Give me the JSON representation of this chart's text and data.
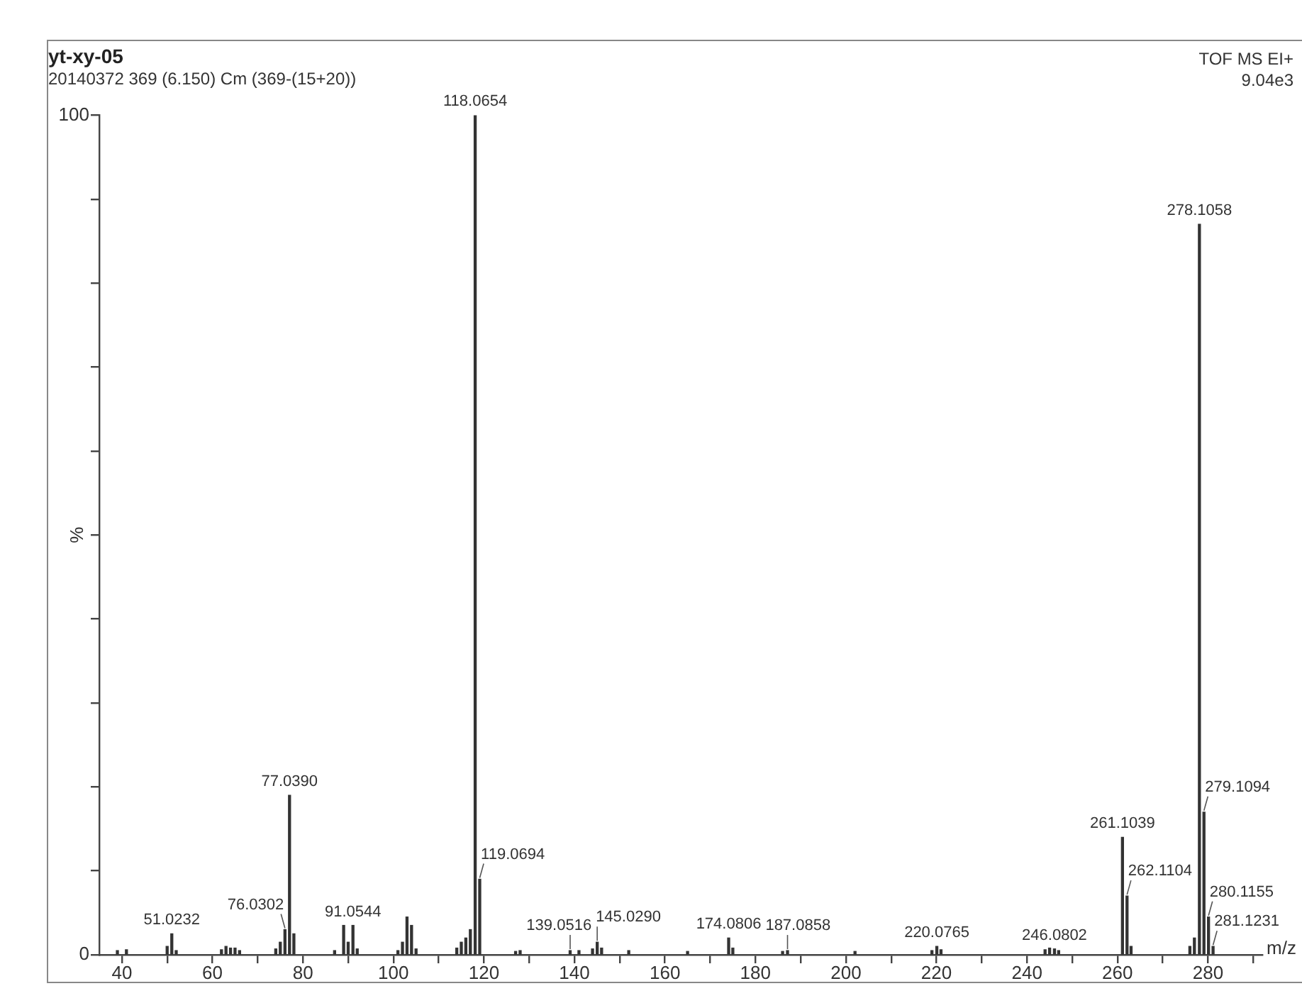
{
  "chart_data": {
    "type": "bar",
    "title": "yt-xy-05",
    "subtitle": "20140372 369 (6.150) Cm (369-(15+20))",
    "xlabel": "m/z",
    "ylabel": "%",
    "x": [
      39,
      41,
      50,
      51.0232,
      52,
      62,
      63,
      64,
      65,
      66,
      74,
      75,
      76.0302,
      77.039,
      78,
      87,
      89,
      90,
      91.0544,
      92,
      101,
      102,
      103,
      104,
      105,
      114,
      115,
      116,
      117,
      118.0654,
      119.0694,
      127,
      128,
      139.0516,
      141,
      144,
      145.029,
      146,
      152,
      165,
      174.0806,
      175,
      186,
      187.0858,
      202,
      219,
      220.0765,
      221,
      244,
      245,
      246.0802,
      247,
      261.1039,
      262.1104,
      263,
      276,
      277,
      278.1058,
      279.1094,
      280.1155,
      281.1231
    ],
    "values": [
      0.5,
      0.6,
      1,
      2.5,
      0.5,
      0.6,
      1,
      0.8,
      0.8,
      0.5,
      0.7,
      1.5,
      3,
      19,
      2.5,
      0.5,
      3.5,
      1.5,
      3.5,
      0.7,
      0.5,
      1.5,
      4.5,
      3.5,
      0.7,
      0.8,
      1.5,
      2,
      3,
      100,
      9,
      0.4,
      0.5,
      0.5,
      0.5,
      0.7,
      1.5,
      0.8,
      0.5,
      0.4,
      2,
      0.8,
      0.4,
      0.5,
      0.4,
      0.5,
      1,
      0.6,
      0.6,
      0.8,
      0.7,
      0.5,
      14,
      7,
      1,
      1,
      2,
      87,
      17,
      4.5,
      1
    ],
    "color": "#333333",
    "xlim": [
      35,
      292
    ],
    "xticks": [
      40,
      {
        "value": 50,
        "label": null
      },
      60,
      {
        "value": 70,
        "label": null
      },
      80,
      {
        "value": 90,
        "label": null
      },
      100,
      {
        "value": 110,
        "label": null
      },
      120,
      {
        "value": 130,
        "label": null
      },
      140,
      {
        "value": 150,
        "label": null
      },
      160,
      {
        "value": 170,
        "label": null
      },
      180,
      {
        "value": 190,
        "label": null
      },
      200,
      {
        "value": 210,
        "label": null
      },
      220,
      {
        "value": 230,
        "label": null
      },
      240,
      {
        "value": 250,
        "label": null
      },
      260,
      {
        "value": 270,
        "label": null
      },
      280,
      {
        "value": 290,
        "label": null
      }
    ],
    "ylim": [
      0,
      100
    ],
    "yticks": [
      0,
      {
        "value": 10,
        "label": null
      },
      {
        "value": 20,
        "label": null
      },
      {
        "value": 30,
        "label": null
      },
      {
        "value": 40,
        "label": null
      },
      {
        "value": 50,
        "label": null
      },
      {
        "value": 60,
        "label": null
      },
      {
        "value": 70,
        "label": null
      },
      {
        "value": 80,
        "label": null
      },
      {
        "value": 90,
        "label": null
      },
      100
    ],
    "grid": false,
    "legend": false,
    "annotations": [
      "TOF MS EI+",
      "9.04e3",
      {
        "text": "51.0232",
        "x": 51.0232,
        "y": 2.5
      },
      {
        "text": "76.0302",
        "x": 76.0302,
        "y": 3
      },
      {
        "text": "77.0390",
        "x": 77.039,
        "y": 19
      },
      {
        "text": "91.0544",
        "x": 91.0544,
        "y": 3.5
      },
      {
        "text": "118.0654",
        "x": 118.0654,
        "y": 100
      },
      {
        "text": "119.0694",
        "x": 119.0694,
        "y": 9
      },
      {
        "text": "139.0516",
        "x": 139.0516,
        "y": 0.5
      },
      {
        "text": "145.0290",
        "x": 145.029,
        "y": 1.5
      },
      {
        "text": "174.0806",
        "x": 174.0806,
        "y": 2
      },
      {
        "text": "187.0858",
        "x": 187.0858,
        "y": 0.5
      },
      {
        "text": "220.0765",
        "x": 220.0765,
        "y": 1
      },
      {
        "text": "246.0802",
        "x": 246.0802,
        "y": 0.7
      },
      {
        "text": "261.1039",
        "x": 261.1039,
        "y": 14
      },
      {
        "text": "262.1104",
        "x": 262.1104,
        "y": 7
      },
      {
        "text": "278.1058",
        "x": 278.1058,
        "y": 87
      },
      {
        "text": "279.1094",
        "x": 279.1094,
        "y": 17
      },
      {
        "text": "280.1155",
        "x": 280.1155,
        "y": 4.5
      },
      {
        "text": "281.1231",
        "x": 281.1231,
        "y": 1
      }
    ]
  }
}
